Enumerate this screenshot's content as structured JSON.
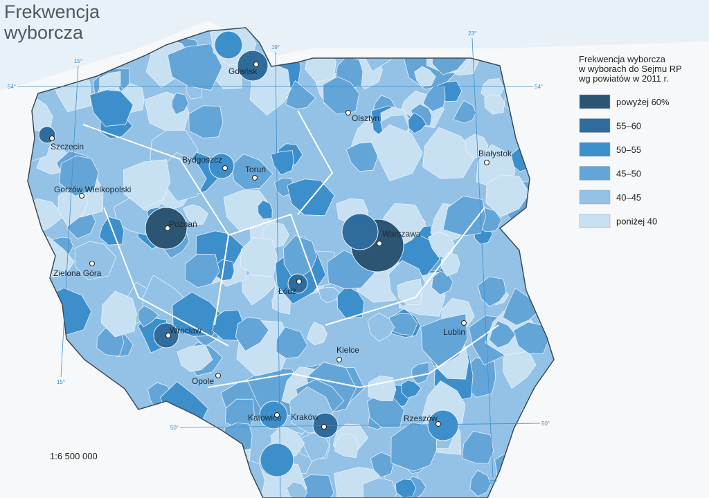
{
  "title": [
    "Frekwencja",
    "wyborcza"
  ],
  "legend": {
    "title": [
      "Frekwencja wyborcza",
      "w wyborach do Sejmu RP",
      "wg powiatów w 2011 r."
    ],
    "items": [
      {
        "label": "powyżej 60%",
        "color": "#2c5573"
      },
      {
        "label": "55–60",
        "color": "#2f6b9b"
      },
      {
        "label": "50–55",
        "color": "#3d8fcc"
      },
      {
        "label": "45–50",
        "color": "#64a5d8"
      },
      {
        "label": "40–45",
        "color": "#93c2e6"
      },
      {
        "label": "poniżej 40",
        "color": "#c7e0f2"
      }
    ]
  },
  "cities": [
    "Gdańsk",
    "Olsztyn",
    "Białystok",
    "Szczecin",
    "Bydgoszcz",
    "Toruń",
    "Gorzów Wielkopolski",
    "Poznań",
    "Warszawa",
    "Zielona Góra",
    "Łódź",
    "Wrocław",
    "Lublin",
    "Kielce",
    "Opole",
    "Katowice",
    "Kraków",
    "Rzeszów"
  ],
  "meridians": [
    "15°",
    "19°",
    "23°"
  ],
  "parallels": [
    "54°",
    "50°"
  ],
  "scale": "1:6 500 000"
}
